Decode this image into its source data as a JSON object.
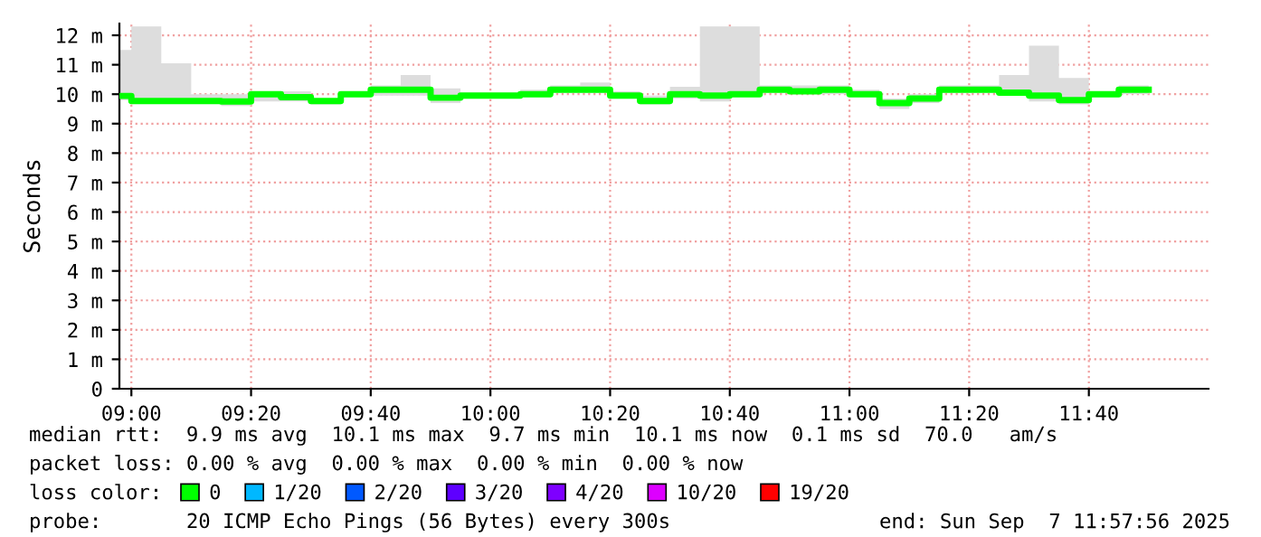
{
  "chart_data": {
    "type": "line",
    "ylabel": "Seconds",
    "x": [
      "2025-09-07T08:58",
      "2025-09-07T09:00",
      "2025-09-07T09:00",
      "2025-09-07T09:05",
      "2025-09-07T09:05",
      "2025-09-07T09:10",
      "2025-09-07T09:10",
      "2025-09-07T09:15",
      "2025-09-07T09:15",
      "2025-09-07T09:20",
      "2025-09-07T09:20",
      "2025-09-07T09:25",
      "2025-09-07T09:25",
      "2025-09-07T09:30",
      "2025-09-07T09:30",
      "2025-09-07T09:35",
      "2025-09-07T09:35",
      "2025-09-07T09:40",
      "2025-09-07T09:40",
      "2025-09-07T09:45",
      "2025-09-07T09:45",
      "2025-09-07T09:50",
      "2025-09-07T09:50",
      "2025-09-07T09:55",
      "2025-09-07T09:55",
      "2025-09-07T10:00",
      "2025-09-07T10:00",
      "2025-09-07T10:05",
      "2025-09-07T10:05",
      "2025-09-07T10:10",
      "2025-09-07T10:10",
      "2025-09-07T10:15",
      "2025-09-07T10:15",
      "2025-09-07T10:20",
      "2025-09-07T10:20",
      "2025-09-07T10:25",
      "2025-09-07T10:25",
      "2025-09-07T10:30",
      "2025-09-07T10:30",
      "2025-09-07T10:35",
      "2025-09-07T10:35",
      "2025-09-07T10:40",
      "2025-09-07T10:40",
      "2025-09-07T10:45",
      "2025-09-07T10:45",
      "2025-09-07T10:50",
      "2025-09-07T10:50",
      "2025-09-07T10:55",
      "2025-09-07T10:55",
      "2025-09-07T11:00",
      "2025-09-07T11:00",
      "2025-09-07T11:05",
      "2025-09-07T11:05",
      "2025-09-07T11:10",
      "2025-09-07T11:10",
      "2025-09-07T11:15",
      "2025-09-07T11:15",
      "2025-09-07T11:20",
      "2025-09-07T11:20",
      "2025-09-07T11:25",
      "2025-09-07T11:25",
      "2025-09-07T11:30",
      "2025-09-07T11:30",
      "2025-09-07T11:35",
      "2025-09-07T11:35",
      "2025-09-07T11:40",
      "2025-09-07T11:40",
      "2025-09-07T11:45",
      "2025-09-07T11:45",
      "2025-09-07T11:50"
    ],
    "series": [
      {
        "name": "0",
        "color": "#00ff00",
        "values": [
          9.94,
          9.94,
          9.77,
          9.77,
          9.77,
          9.77,
          9.77,
          9.77,
          9.75,
          9.75,
          10.0,
          10.0,
          9.9,
          9.9,
          9.77,
          9.77,
          10.0,
          10.0,
          10.15,
          10.15,
          10.15,
          10.15,
          9.88,
          9.88,
          9.95,
          9.95,
          9.95,
          9.95,
          10.0,
          10.0,
          10.15,
          10.15,
          10.15,
          10.15,
          9.95,
          9.95,
          9.77,
          9.77,
          10.0,
          10.0,
          9.95,
          9.95,
          10.0,
          10.0,
          10.15,
          10.15,
          10.1,
          10.1,
          10.15,
          10.15,
          10.0,
          10.0,
          9.7,
          9.7,
          9.85,
          9.85,
          10.15,
          10.15,
          10.15,
          10.15,
          10.05,
          10.05,
          9.95,
          9.95,
          9.8,
          9.8,
          10.0,
          10.0,
          10.15,
          10.15
        ],
        "lower": [
          9.8,
          9.8,
          9.7,
          9.7,
          9.7,
          9.7,
          9.75,
          9.75,
          9.6,
          9.6,
          9.75,
          9.75,
          9.75,
          9.75,
          9.65,
          9.65,
          9.9,
          9.9,
          9.95,
          9.95,
          9.95,
          9.95,
          9.7,
          9.7,
          9.9,
          9.9,
          9.9,
          9.9,
          9.9,
          9.9,
          10.05,
          10.05,
          10.05,
          10.05,
          9.9,
          9.9,
          9.65,
          9.65,
          9.85,
          9.85,
          9.75,
          9.75,
          9.9,
          9.9,
          10.05,
          10.05,
          10.05,
          10.05,
          10.0,
          10.0,
          9.9,
          9.9,
          9.5,
          9.5,
          9.7,
          9.7,
          10.05,
          10.05,
          10.05,
          10.05,
          9.95,
          9.95,
          9.75,
          9.75,
          9.65,
          9.65,
          9.9,
          9.9,
          10.0,
          10.0
        ],
        "upper": [
          11.5,
          11.5,
          12.3,
          12.3,
          11.05,
          11.05,
          10.0,
          10.0,
          10.0,
          10.0,
          10.1,
          10.1,
          10.1,
          10.1,
          9.85,
          9.85,
          10.1,
          10.1,
          10.3,
          10.3,
          10.65,
          10.65,
          10.2,
          10.2,
          10.05,
          10.05,
          10.05,
          10.05,
          10.15,
          10.15,
          10.3,
          10.3,
          10.4,
          10.4,
          10.1,
          10.1,
          9.95,
          9.95,
          10.25,
          10.25,
          12.3,
          12.3,
          12.3,
          12.3,
          10.3,
          10.3,
          10.3,
          10.3,
          10.3,
          10.3,
          10.15,
          10.15,
          9.85,
          9.85,
          10.0,
          10.0,
          10.3,
          10.3,
          10.3,
          10.3,
          10.65,
          10.65,
          11.65,
          11.65,
          10.55,
          10.55,
          10.1,
          10.1,
          10.3,
          10.3
        ]
      },
      {
        "name": "1/20",
        "color": "#00b8ff",
        "values": [
          null,
          null,
          null,
          null,
          null,
          null,
          null,
          null,
          null,
          null,
          null,
          null,
          null,
          null,
          null,
          null,
          null,
          null,
          null,
          null,
          null,
          null,
          null,
          null,
          null,
          null,
          null,
          null,
          null,
          null,
          null,
          null,
          null,
          null,
          null,
          null,
          null,
          null,
          null,
          null,
          null,
          null,
          null,
          null,
          null,
          null,
          null,
          null,
          null,
          null,
          null,
          null,
          null,
          null,
          null,
          null,
          null,
          null,
          null,
          null,
          null,
          null,
          null,
          null,
          null,
          null,
          null,
          null,
          null,
          null
        ]
      },
      {
        "name": "2/20",
        "color": "#0059ff",
        "values": [
          null,
          null,
          null,
          null,
          null,
          null,
          null,
          null,
          null,
          null,
          null,
          null,
          null,
          null,
          null,
          null,
          null,
          null,
          null,
          null,
          null,
          null,
          null,
          null,
          null,
          null,
          null,
          null,
          null,
          null,
          null,
          null,
          null,
          null,
          null,
          null,
          null,
          null,
          null,
          null,
          null,
          null,
          null,
          null,
          null,
          null,
          null,
          null,
          null,
          null,
          null,
          null,
          null,
          null,
          null,
          null,
          null,
          null,
          null,
          null,
          null,
          null,
          null,
          null,
          null,
          null,
          null,
          null,
          null,
          null
        ]
      },
      {
        "name": "3/20",
        "color": "#5e00ff",
        "values": [
          null,
          null,
          null,
          null,
          null,
          null,
          null,
          null,
          null,
          null,
          null,
          null,
          null,
          null,
          null,
          null,
          null,
          null,
          null,
          null,
          null,
          null,
          null,
          null,
          null,
          null,
          null,
          null,
          null,
          null,
          null,
          null,
          null,
          null,
          null,
          null,
          null,
          null,
          null,
          null,
          null,
          null,
          null,
          null,
          null,
          null,
          null,
          null,
          null,
          null,
          null,
          null,
          null,
          null,
          null,
          null,
          null,
          null,
          null,
          null,
          null,
          null,
          null,
          null,
          null,
          null,
          null,
          null,
          null,
          null
        ]
      },
      {
        "name": "4/20",
        "color": "#7e00ff",
        "values": [
          null,
          null,
          null,
          null,
          null,
          null,
          null,
          null,
          null,
          null,
          null,
          null,
          null,
          null,
          null,
          null,
          null,
          null,
          null,
          null,
          null,
          null,
          null,
          null,
          null,
          null,
          null,
          null,
          null,
          null,
          null,
          null,
          null,
          null,
          null,
          null,
          null,
          null,
          null,
          null,
          null,
          null,
          null,
          null,
          null,
          null,
          null,
          null,
          null,
          null,
          null,
          null,
          null,
          null,
          null,
          null,
          null,
          null,
          null,
          null,
          null,
          null,
          null,
          null,
          null,
          null,
          null,
          null,
          null,
          null
        ]
      },
      {
        "name": "10/20",
        "color": "#dd00ff",
        "values": [
          null,
          null,
          null,
          null,
          null,
          null,
          null,
          null,
          null,
          null,
          null,
          null,
          null,
          null,
          null,
          null,
          null,
          null,
          null,
          null,
          null,
          null,
          null,
          null,
          null,
          null,
          null,
          null,
          null,
          null,
          null,
          null,
          null,
          null,
          null,
          null,
          null,
          null,
          null,
          null,
          null,
          null,
          null,
          null,
          null,
          null,
          null,
          null,
          null,
          null,
          null,
          null,
          null,
          null,
          null,
          null,
          null,
          null,
          null,
          null,
          null,
          null,
          null,
          null,
          null,
          null,
          null,
          null,
          null,
          null
        ]
      },
      {
        "name": "19/20",
        "color": "#ff0000",
        "values": [
          null,
          null,
          null,
          null,
          null,
          null,
          null,
          null,
          null,
          null,
          null,
          null,
          null,
          null,
          null,
          null,
          null,
          null,
          null,
          null,
          null,
          null,
          null,
          null,
          null,
          null,
          null,
          null,
          null,
          null,
          null,
          null,
          null,
          null,
          null,
          null,
          null,
          null,
          null,
          null,
          null,
          null,
          null,
          null,
          null,
          null,
          null,
          null,
          null,
          null,
          null,
          null,
          null,
          null,
          null,
          null,
          null,
          null,
          null,
          null,
          null,
          null,
          null,
          null,
          null,
          null,
          null,
          null,
          null,
          null
        ]
      }
    ],
    "xlim": [
      "2025-09-07T08:58",
      "2025-09-07T12:00"
    ],
    "xticks": [
      {
        "value": "2025-09-07T09:00",
        "label": "09:00"
      },
      {
        "value": "2025-09-07T09:20",
        "label": "09:20"
      },
      {
        "value": "2025-09-07T09:40",
        "label": "09:40"
      },
      {
        "value": "2025-09-07T10:00",
        "label": "10:00"
      },
      {
        "value": "2025-09-07T10:20",
        "label": "10:20"
      },
      {
        "value": "2025-09-07T10:40",
        "label": "10:40"
      },
      {
        "value": "2025-09-07T11:00",
        "label": "11:00"
      },
      {
        "value": "2025-09-07T11:20",
        "label": "11:20"
      },
      {
        "value": "2025-09-07T11:40",
        "label": "11:40"
      }
    ],
    "ylim": [
      0,
      12.4
    ],
    "yticks": [
      0,
      {
        "value": 1,
        "label": "1 m"
      },
      {
        "value": 2,
        "label": "2 m"
      },
      {
        "value": 3,
        "label": "3 m"
      },
      {
        "value": 4,
        "label": "4 m"
      },
      {
        "value": 5,
        "label": "5 m"
      },
      {
        "value": 6,
        "label": "6 m"
      },
      {
        "value": 7,
        "label": "7 m"
      },
      {
        "value": 8,
        "label": "8 m"
      },
      {
        "value": 9,
        "label": "9 m"
      },
      {
        "value": 10,
        "label": "10 m"
      },
      {
        "value": 11,
        "label": "11 m"
      },
      {
        "value": 12,
        "label": "12 m"
      }
    ],
    "grid": true,
    "legend": "bottom",
    "legend_title": "loss color:",
    "annotations": [
      "median rtt:  9.9 ms avg  10.1 ms max  9.7 ms min  10.1 ms now  0.1 ms sd  70.0   am/s",
      "packet loss: 0.00 % avg  0.00 % max  0.00 % min  0.00 % now",
      "probe:       20 ICMP Echo Pings (56 Bytes) every 300s",
      "end: Sun Sep  7 11:57:56 2025"
    ]
  }
}
